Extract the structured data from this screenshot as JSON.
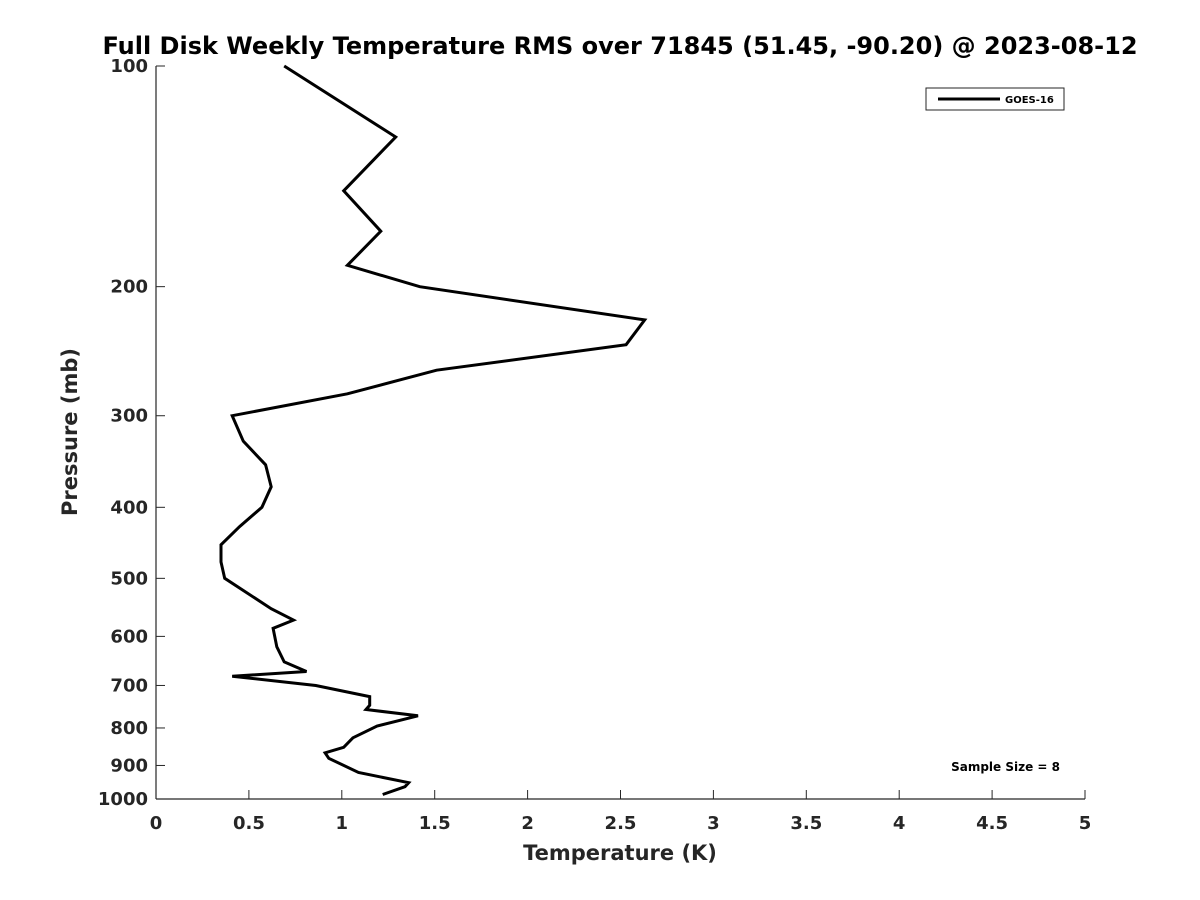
{
  "chart_data": {
    "type": "line",
    "title": "Full Disk Weekly Temperature RMS over 71845 (51.45, -90.20) @ 2023-08-12",
    "xlabel": "Temperature (K)",
    "ylabel": "Pressure (mb)",
    "xlim": [
      0,
      5
    ],
    "ylim": [
      1000,
      100
    ],
    "yscale": "log",
    "x_ticks": [
      "0",
      "0.5",
      "1",
      "1.5",
      "2",
      "2.5",
      "3",
      "3.5",
      "4",
      "4.5",
      "5"
    ],
    "y_ticks": [
      "100",
      "200",
      "300",
      "400",
      "500",
      "600",
      "700",
      "800",
      "900",
      "1000"
    ],
    "grid": false,
    "legend_position": "top-right",
    "annotation": "Sample Size = 8",
    "series": [
      {
        "name": "GOES-16",
        "color": "#000000",
        "points": [
          {
            "x": 0.69,
            "y": 100
          },
          {
            "x": 1.29,
            "y": 125
          },
          {
            "x": 1.01,
            "y": 148
          },
          {
            "x": 1.21,
            "y": 168
          },
          {
            "x": 1.03,
            "y": 187
          },
          {
            "x": 1.42,
            "y": 200
          },
          {
            "x": 2.63,
            "y": 222
          },
          {
            "x": 2.53,
            "y": 240
          },
          {
            "x": 1.51,
            "y": 260
          },
          {
            "x": 1.03,
            "y": 280
          },
          {
            "x": 0.41,
            "y": 300
          },
          {
            "x": 0.47,
            "y": 325
          },
          {
            "x": 0.59,
            "y": 350
          },
          {
            "x": 0.62,
            "y": 375
          },
          {
            "x": 0.57,
            "y": 400
          },
          {
            "x": 0.45,
            "y": 425
          },
          {
            "x": 0.35,
            "y": 450
          },
          {
            "x": 0.35,
            "y": 475
          },
          {
            "x": 0.37,
            "y": 500
          },
          {
            "x": 0.62,
            "y": 550
          },
          {
            "x": 0.74,
            "y": 570
          },
          {
            "x": 0.63,
            "y": 585
          },
          {
            "x": 0.65,
            "y": 620
          },
          {
            "x": 0.69,
            "y": 650
          },
          {
            "x": 0.81,
            "y": 670
          },
          {
            "x": 0.41,
            "y": 680
          },
          {
            "x": 0.86,
            "y": 700
          },
          {
            "x": 1.15,
            "y": 725
          },
          {
            "x": 1.15,
            "y": 745
          },
          {
            "x": 1.13,
            "y": 755
          },
          {
            "x": 1.41,
            "y": 770
          },
          {
            "x": 1.19,
            "y": 795
          },
          {
            "x": 1.06,
            "y": 825
          },
          {
            "x": 1.01,
            "y": 850
          },
          {
            "x": 0.91,
            "y": 865
          },
          {
            "x": 0.93,
            "y": 880
          },
          {
            "x": 1.09,
            "y": 920
          },
          {
            "x": 1.36,
            "y": 950
          },
          {
            "x": 1.34,
            "y": 962
          },
          {
            "x": 1.22,
            "y": 986
          }
        ]
      }
    ]
  }
}
